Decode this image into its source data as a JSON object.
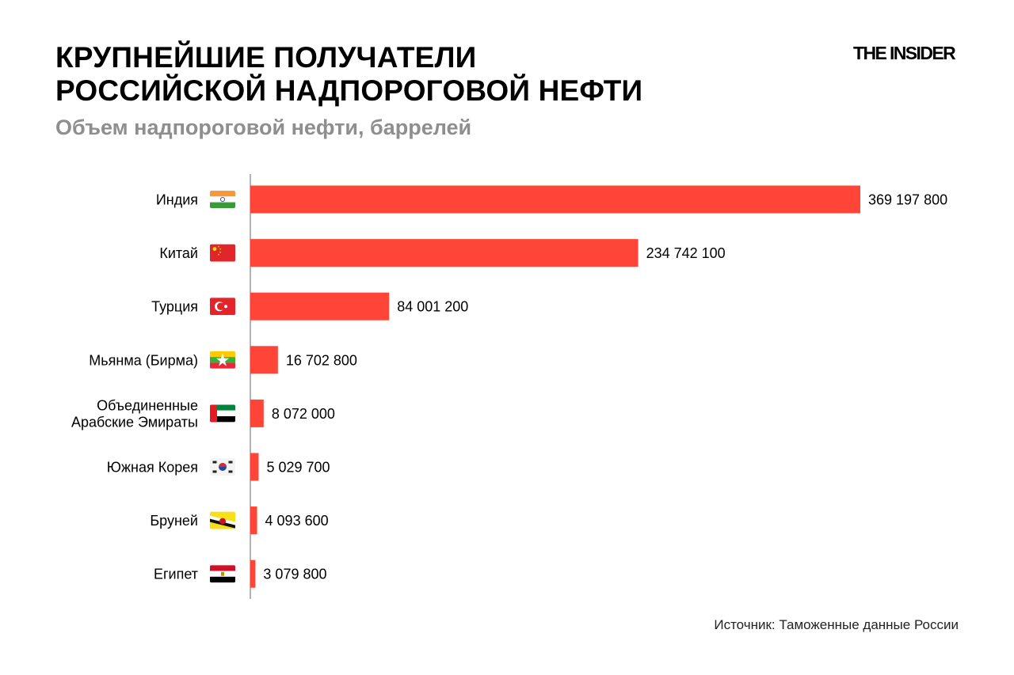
{
  "header": {
    "title_line1": "КРУПНЕЙШИЕ ПОЛУЧАТЕЛИ",
    "title_line2": "РОССИЙСКОЙ НАДПОРОГОВОЙ НЕФТИ",
    "subtitle": "Объем надпороговой нефти, баррелей",
    "logo": "THE INSIDER"
  },
  "footer": {
    "source": "Источник: Таможенные данные России"
  },
  "chart_data": {
    "type": "bar",
    "orientation": "horizontal",
    "bar_color": "#ff4538",
    "axis_color": "#9a9a9a",
    "grid": false,
    "categories": [
      "Индия",
      "Китай",
      "Турция",
      "Мьянма (Бирма)",
      "Объединенные Арабские Эмираты",
      "Южная Корея",
      "Бруней",
      "Египет"
    ],
    "category_lines": [
      [
        "Индия"
      ],
      [
        "Китай"
      ],
      [
        "Турция"
      ],
      [
        "Мьянма (Бирма)"
      ],
      [
        "Объединенные",
        "Арабские Эмираты"
      ],
      [
        "Южная Корея"
      ],
      [
        "Бруней"
      ],
      [
        "Египет"
      ]
    ],
    "flags": [
      "india-flag-icon",
      "china-flag-icon",
      "turkey-flag-icon",
      "myanmar-flag-icon",
      "uae-flag-icon",
      "south-korea-flag-icon",
      "brunei-flag-icon",
      "egypt-flag-icon"
    ],
    "values": [
      369197800,
      234742100,
      84001200,
      16702800,
      8072000,
      5029700,
      4093600,
      3079800
    ],
    "value_labels": [
      "369 197 800",
      "234 742 100",
      "84 001 200",
      "16 702 800",
      "8 072 000",
      "5 029 700",
      "4 093 600",
      "3 079 800"
    ]
  }
}
